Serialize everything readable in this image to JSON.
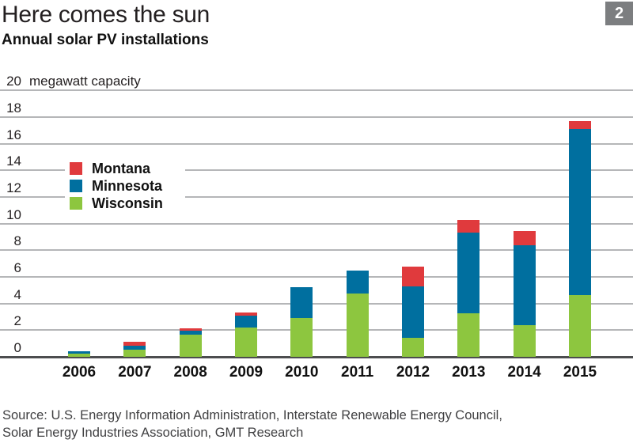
{
  "header": {
    "title": "Here comes the sun",
    "subtitle": "Annual solar PV installations",
    "badge": "2"
  },
  "chart_data": {
    "type": "bar",
    "stacked": true,
    "title": "Annual solar PV installations",
    "ylabel": "megawatt capacity",
    "ylim": [
      0,
      20
    ],
    "ytick_step": 2,
    "grid": true,
    "legend_position": "upper-left-inside",
    "legend_order": [
      "Montana",
      "Minnesota",
      "Wisconsin"
    ],
    "categories": [
      "2006",
      "2007",
      "2008",
      "2009",
      "2010",
      "2011",
      "2012",
      "2013",
      "2014",
      "2015"
    ],
    "series": [
      {
        "name": "Wisconsin",
        "color": "#8dc63f",
        "values": [
          0.25,
          0.55,
          1.65,
          2.2,
          2.9,
          4.75,
          1.4,
          3.25,
          2.4,
          4.65
        ]
      },
      {
        "name": "Minnesota",
        "color": "#006f9f",
        "values": [
          0.15,
          0.3,
          0.3,
          0.9,
          2.3,
          1.75,
          3.9,
          6.1,
          6.0,
          12.45
        ]
      },
      {
        "name": "Montana",
        "color": "#e03a3d",
        "values": [
          0.0,
          0.25,
          0.2,
          0.25,
          0.0,
          0.0,
          1.45,
          0.9,
          1.05,
          0.6
        ]
      }
    ]
  },
  "source": {
    "line1": "Source: U.S. Energy Information Administration, Interstate Renewable Energy Council,",
    "line2": "Solar Energy Industries Association, GMT Research"
  },
  "colors": {
    "accent_red": "#e03a3d",
    "accent_blue": "#006f9f",
    "accent_green": "#8dc63f",
    "gridline": "#b5b6b8",
    "baseline": "#4c4d4f",
    "badge_bg": "#7c7e80"
  }
}
